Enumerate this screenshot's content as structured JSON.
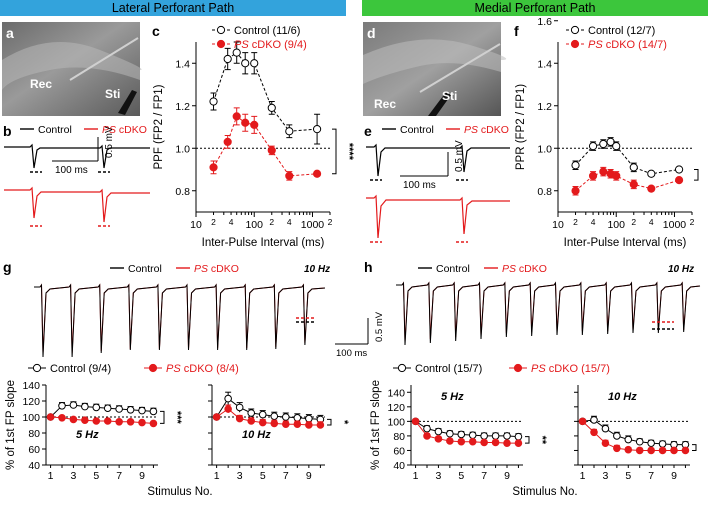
{
  "header": {
    "lateral": "Lateral Perforant Path",
    "medial": "Medial Perforant Path"
  },
  "colors": {
    "control": "#000000",
    "cdko": "#e31a1c",
    "control_fill": "#ffffff"
  },
  "panels": {
    "a": {
      "letter": "a",
      "rec": "Rec",
      "sti": "Sti"
    },
    "d": {
      "letter": "d",
      "rec": "Rec",
      "sti": "Sti"
    },
    "b": {
      "letter": "b",
      "legend_control": "Control",
      "legend_ps": "PS",
      "legend_cdko": " cDKO",
      "scale_time": "100 ms",
      "scale_amp": "0.5 mV"
    },
    "e": {
      "letter": "e",
      "legend_control": "Control",
      "legend_ps": "PS",
      "legend_cdko": " cDKO",
      "scale_time": "100 ms",
      "scale_amp": "0.5 mV"
    },
    "g": {
      "letter": "g",
      "legend_control": "Control",
      "legend_ps": "PS",
      "legend_cdko": " cDKO",
      "freq": "10 Hz"
    },
    "h": {
      "letter": "h",
      "legend_control": "Control",
      "legend_ps": "PS",
      "legend_cdko": " cDKO",
      "freq": "10 Hz"
    },
    "gh_scale": {
      "amp": "0.5 mV",
      "time": "100 ms"
    }
  },
  "chart_data": [
    {
      "id": "c",
      "letter": "c",
      "type": "line",
      "xscale": "log",
      "xlabel": "Inter-Pulse Interval (ms)",
      "ylabel": "PPF (FP2 / FP1)",
      "ylim": [
        0.7,
        1.5
      ],
      "yticks": [
        "0.8",
        "1.0",
        "1.2",
        "1.4"
      ],
      "xticks": [
        "2",
        "4",
        "10",
        "2",
        "4",
        "100",
        "2",
        "4",
        "1000",
        "2"
      ],
      "significance": "****",
      "x": [
        20,
        35,
        50,
        70,
        100,
        200,
        400,
        1200
      ],
      "series": [
        {
          "name": "Control",
          "n": "(11/6)",
          "values": [
            1.22,
            1.42,
            1.45,
            1.4,
            1.4,
            1.19,
            1.08,
            1.09
          ],
          "err": [
            0.04,
            0.05,
            0.05,
            0.05,
            0.05,
            0.03,
            0.03,
            0.07
          ]
        },
        {
          "ps": "PS",
          "name": " cDKO",
          "n": "(9/4)",
          "values": [
            0.91,
            1.03,
            1.15,
            1.12,
            1.11,
            0.99,
            0.87,
            0.88
          ],
          "err": [
            0.03,
            0.03,
            0.04,
            0.04,
            0.04,
            0.02,
            0.02,
            0.01
          ]
        }
      ]
    },
    {
      "id": "f",
      "letter": "f",
      "type": "line",
      "xscale": "log",
      "xlabel": "Inter-Pulse Interval (ms)",
      "ylabel": "PPR (FP2 / FP1)",
      "ylim": [
        0.7,
        1.5
      ],
      "yticks": [
        "0.8",
        "1.0",
        "1.2",
        "1.4",
        "1.6"
      ],
      "xticks": [
        "2",
        "4",
        "10",
        "2",
        "4",
        "100",
        "2",
        "4",
        "1000",
        "2"
      ],
      "significance": "****",
      "x": [
        20,
        40,
        60,
        80,
        100,
        200,
        400,
        1200
      ],
      "series": [
        {
          "name": "Control",
          "n": "(12/7)",
          "values": [
            0.92,
            1.01,
            1.02,
            1.03,
            1.01,
            0.91,
            0.88,
            0.9
          ],
          "err": [
            0.02,
            0.02,
            0.02,
            0.02,
            0.02,
            0.02,
            0.01,
            0.01
          ]
        },
        {
          "ps": "PS",
          "name": " cDKO",
          "n": "(14/7)",
          "values": [
            0.8,
            0.87,
            0.89,
            0.88,
            0.87,
            0.83,
            0.81,
            0.85
          ],
          "err": [
            0.02,
            0.02,
            0.02,
            0.02,
            0.02,
            0.02,
            0.01,
            0.01
          ]
        }
      ]
    },
    {
      "id": "g5",
      "type": "line",
      "ylabel": "% of 1st FP slope",
      "xlabel": "Stimulus No.",
      "freq": "5 Hz",
      "significance": "***",
      "ylim": [
        40,
        140
      ],
      "yticks": [
        "40",
        "60",
        "80",
        "100",
        "120",
        "140"
      ],
      "xticks": [
        "1",
        "3",
        "5",
        "7",
        "9"
      ],
      "legend_control": "Control",
      "legend_control_n": "(9/4)",
      "legend_ps": "PS",
      "legend_cdko": " cDKO",
      "legend_cdko_n": "(8/4)",
      "x": [
        1,
        2,
        3,
        4,
        5,
        6,
        7,
        8,
        9,
        10
      ],
      "series": [
        {
          "name": "Control",
          "values": [
            100,
            114,
            115,
            113,
            112,
            111,
            110,
            109,
            108,
            107
          ],
          "err": [
            0,
            4,
            4,
            4,
            4,
            4,
            4,
            4,
            4,
            4
          ]
        },
        {
          "name": "PS cDKO",
          "values": [
            100,
            99,
            97,
            96,
            95,
            95,
            94,
            94,
            93,
            92
          ],
          "err": [
            0,
            2,
            2,
            2,
            2,
            2,
            2,
            2,
            2,
            2
          ]
        }
      ]
    },
    {
      "id": "g10",
      "type": "line",
      "freq": "10 Hz",
      "significance": "*",
      "ylim": [
        40,
        140
      ],
      "xticks": [
        "1",
        "3",
        "5",
        "7",
        "9"
      ],
      "x": [
        1,
        2,
        3,
        4,
        5,
        6,
        7,
        8,
        9,
        10
      ],
      "series": [
        {
          "name": "Control",
          "values": [
            100,
            123,
            112,
            105,
            103,
            101,
            100,
            99,
            98,
            97
          ],
          "err": [
            0,
            8,
            6,
            5,
            5,
            5,
            5,
            5,
            5,
            5
          ]
        },
        {
          "name": "PS cDKO",
          "values": [
            100,
            110,
            98,
            95,
            93,
            92,
            91,
            91,
            90,
            90
          ],
          "err": [
            0,
            5,
            4,
            4,
            4,
            4,
            4,
            4,
            4,
            4
          ]
        }
      ]
    },
    {
      "id": "h5",
      "type": "line",
      "ylabel": "% of 1st FP slope",
      "xlabel": "Stimulus No.",
      "freq": "5 Hz",
      "significance": "**",
      "ylim": [
        40,
        150
      ],
      "yticks": [
        "40",
        "60",
        "80",
        "100",
        "120",
        "140"
      ],
      "xticks": [
        "1",
        "3",
        "5",
        "7",
        "9"
      ],
      "legend_control": "Control",
      "legend_control_n": "(15/7)",
      "legend_ps": "PS",
      "legend_cdko": " cDKO",
      "legend_cdko_n": "(15/7)",
      "x": [
        1,
        2,
        3,
        4,
        5,
        6,
        7,
        8,
        9,
        10
      ],
      "series": [
        {
          "name": "Control",
          "values": [
            100,
            90,
            86,
            83,
            82,
            81,
            80,
            80,
            80,
            79
          ],
          "err": [
            0,
            4,
            4,
            4,
            4,
            4,
            4,
            4,
            4,
            4
          ]
        },
        {
          "name": "PS cDKO",
          "values": [
            100,
            80,
            76,
            73,
            72,
            72,
            71,
            71,
            70,
            70
          ],
          "err": [
            0,
            3,
            3,
            3,
            3,
            3,
            3,
            3,
            3,
            3
          ]
        }
      ]
    },
    {
      "id": "h10",
      "type": "line",
      "freq": "10 Hz",
      "significance": "**",
      "ylim": [
        40,
        150
      ],
      "xticks": [
        "1",
        "3",
        "5",
        "7",
        "9"
      ],
      "x": [
        1,
        2,
        3,
        4,
        5,
        6,
        7,
        8,
        9,
        10
      ],
      "series": [
        {
          "name": "Control",
          "values": [
            100,
            102,
            90,
            80,
            75,
            72,
            70,
            69,
            68,
            68
          ],
          "err": [
            0,
            5,
            5,
            5,
            5,
            4,
            4,
            4,
            4,
            4
          ]
        },
        {
          "name": "PS cDKO",
          "values": [
            100,
            85,
            70,
            63,
            61,
            60,
            60,
            60,
            60,
            60
          ],
          "err": [
            0,
            4,
            4,
            4,
            3,
            3,
            3,
            3,
            3,
            3
          ]
        }
      ]
    }
  ]
}
